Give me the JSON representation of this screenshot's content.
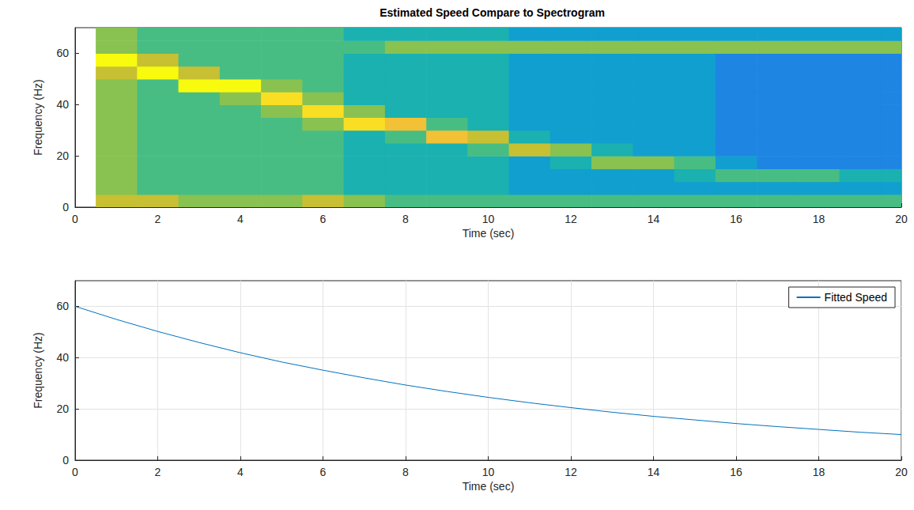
{
  "chart_data": [
    {
      "type": "heatmap",
      "title": "Estimated Speed Compare to Spectrogram",
      "x_label": "Time (sec)",
      "y_label": "Frequency (Hz)",
      "xlim": [
        0,
        20
      ],
      "xticks": [
        0,
        2,
        4,
        6,
        8,
        10,
        12,
        14,
        16,
        18,
        20
      ],
      "ylim": [
        0,
        70
      ],
      "yticks": [
        0,
        20,
        40,
        60
      ],
      "grid": false,
      "x_edges": [
        0.5,
        1.5,
        2.5,
        3.5,
        4.5,
        5.5,
        6.5,
        7.5,
        8.5,
        9.5,
        10.5,
        11.5,
        12.5,
        13.5,
        14.5,
        15.5,
        16.5,
        17.5,
        18.5,
        19.5,
        20
      ],
      "y_edges": [
        0,
        5,
        10,
        15,
        20,
        25,
        30,
        35,
        40,
        45,
        50,
        55,
        60,
        65,
        70
      ],
      "clim": [
        0,
        10
      ],
      "cells": [
        [
          7,
          7,
          6,
          6,
          6,
          7,
          6,
          5,
          5,
          5,
          5,
          5,
          5,
          5,
          5,
          5,
          5,
          5,
          5,
          5
        ],
        [
          6,
          5,
          5,
          5,
          5,
          5,
          4,
          4,
          4,
          4,
          3,
          3,
          3,
          3,
          3,
          3,
          3,
          3,
          3,
          3
        ],
        [
          6,
          5,
          5,
          5,
          5,
          5,
          4,
          4,
          4,
          4,
          3,
          3,
          3,
          3,
          4,
          5,
          5,
          5,
          4,
          4
        ],
        [
          6,
          5,
          5,
          5,
          5,
          5,
          4,
          4,
          4,
          4,
          3,
          4,
          6,
          6,
          5,
          3,
          2,
          2,
          2,
          2
        ],
        [
          6,
          5,
          5,
          5,
          5,
          5,
          4,
          4,
          4,
          5,
          7,
          6,
          4,
          3,
          3,
          2,
          2,
          2,
          2,
          2
        ],
        [
          6,
          5,
          5,
          5,
          5,
          5,
          4,
          5,
          8,
          7,
          4,
          3,
          3,
          3,
          3,
          2,
          2,
          2,
          2,
          2
        ],
        [
          6,
          5,
          5,
          5,
          5,
          6,
          9,
          8,
          5,
          4,
          3,
          3,
          3,
          3,
          3,
          2,
          2,
          2,
          2,
          2
        ],
        [
          6,
          5,
          5,
          5,
          6,
          9,
          6,
          4,
          4,
          4,
          3,
          3,
          3,
          3,
          3,
          2,
          2,
          2,
          2,
          2
        ],
        [
          6,
          5,
          5,
          6,
          9,
          6,
          4,
          4,
          4,
          4,
          3,
          3,
          3,
          3,
          3,
          2,
          2,
          2,
          2,
          2
        ],
        [
          6,
          5,
          10,
          10,
          6,
          5,
          4,
          4,
          4,
          4,
          3,
          3,
          3,
          3,
          3,
          2,
          2,
          2,
          2,
          2
        ],
        [
          7,
          10,
          7,
          5,
          5,
          5,
          4,
          4,
          4,
          4,
          3,
          3,
          3,
          3,
          3,
          2,
          2,
          2,
          2,
          2
        ],
        [
          10,
          7,
          5,
          5,
          5,
          5,
          4,
          4,
          4,
          4,
          3,
          3,
          3,
          3,
          3,
          2,
          2,
          2,
          2,
          2
        ],
        [
          6,
          5,
          5,
          5,
          5,
          5,
          5,
          6,
          6,
          6,
          6,
          6,
          6,
          6,
          6,
          6,
          6,
          6,
          6,
          6
        ],
        [
          6,
          5,
          5,
          5,
          5,
          5,
          4,
          4,
          4,
          4,
          3,
          3,
          3,
          3,
          3,
          3,
          3,
          3,
          3,
          3
        ]
      ]
    },
    {
      "type": "line",
      "x_label": "Time (sec)",
      "y_label": "Frequency (Hz)",
      "xlim": [
        0,
        20
      ],
      "xticks": [
        0,
        2,
        4,
        6,
        8,
        10,
        12,
        14,
        16,
        18,
        20
      ],
      "ylim": [
        0,
        70
      ],
      "yticks": [
        0,
        20,
        40,
        60
      ],
      "grid": true,
      "legend": "upper right",
      "x": [
        0,
        1,
        2,
        3,
        4,
        5,
        6,
        7,
        8,
        9,
        10,
        11,
        12,
        13,
        14,
        15,
        16,
        17,
        18,
        19,
        20
      ],
      "series": [
        {
          "name": "Fitted Speed",
          "color": "#0072bd",
          "values": [
            60,
            54.9,
            50.2,
            45.9,
            41.9,
            38.3,
            35.1,
            32.1,
            29.3,
            26.8,
            24.5,
            22.4,
            20.5,
            18.7,
            17.1,
            15.7,
            14.3,
            13.1,
            12.0,
            10.9,
            10.0
          ]
        }
      ]
    }
  ]
}
